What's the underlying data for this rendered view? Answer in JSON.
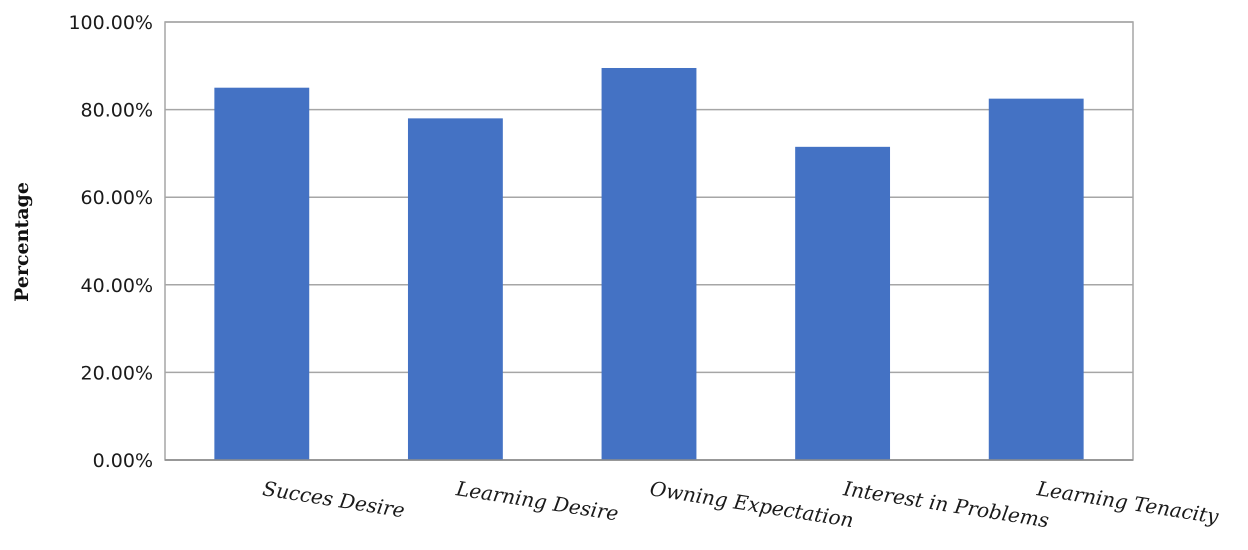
{
  "chart_data": {
    "type": "bar",
    "title": "",
    "xlabel": "",
    "ylabel": "Percentage",
    "categories": [
      "Succes Desire",
      "Learning Desire",
      "Owning Expectation",
      "Interest in Problems",
      "Learning Tenacity"
    ],
    "values": [
      85.0,
      78.0,
      89.5,
      71.5,
      82.5
    ],
    "ylim": [
      0,
      100
    ],
    "yticks": [
      0,
      20,
      40,
      60,
      80,
      100
    ],
    "ytick_labels": [
      "0.00%",
      "20.00%",
      "40.00%",
      "60.00%",
      "80.00%",
      "100.00%"
    ],
    "grid": true,
    "bar_color": "#4472C4",
    "grid_color": "#a6a6a6"
  }
}
